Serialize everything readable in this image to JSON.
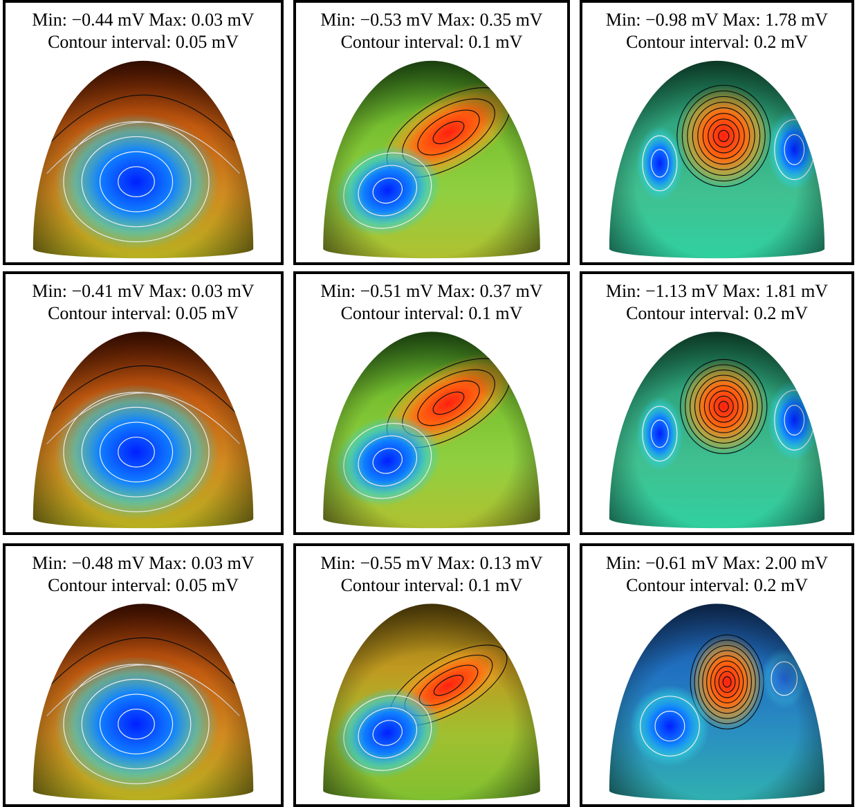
{
  "panels": [
    {
      "line1": "Min: −0.44 mV Max: 0.03 mV",
      "line2": "Contour interval: 0.05 mV"
    },
    {
      "line1": "Min: −0.53 mV Max: 0.35 mV",
      "line2": "Contour interval: 0.1 mV"
    },
    {
      "line1": "Min: −0.98 mV Max: 1.78 mV",
      "line2": "Contour interval: 0.2 mV"
    },
    {
      "line1": "Min: −0.41 mV Max: 0.03 mV",
      "line2": "Contour interval: 0.05 mV"
    },
    {
      "line1": "Min: −0.51 mV Max: 0.37 mV",
      "line2": "Contour interval: 0.1 mV"
    },
    {
      "line1": "Min: −1.13 mV Max: 1.81 mV",
      "line2": "Contour interval: 0.2 mV"
    },
    {
      "line1": "Min: −0.48 mV Max: 0.03 mV",
      "line2": "Contour interval: 0.05 mV"
    },
    {
      "line1": "Min: −0.55 mV Max: 0.13 mV",
      "line2": "Contour interval: 0.1 mV"
    },
    {
      "line1": "Min: −0.61 mV Max: 2.00 mV",
      "line2": "Contour interval: 0.2 mV"
    }
  ]
}
